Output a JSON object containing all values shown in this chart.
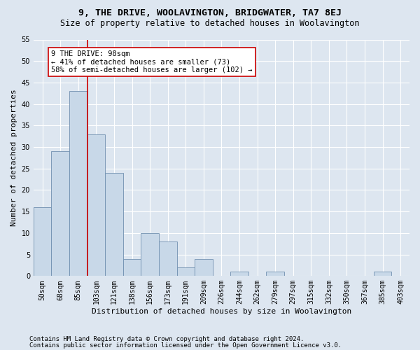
{
  "title": "9, THE DRIVE, WOOLAVINGTON, BRIDGWATER, TA7 8EJ",
  "subtitle": "Size of property relative to detached houses in Woolavington",
  "xlabel": "Distribution of detached houses by size in Woolavington",
  "ylabel": "Number of detached properties",
  "footnote1": "Contains HM Land Registry data © Crown copyright and database right 2024.",
  "footnote2": "Contains public sector information licensed under the Open Government Licence v3.0.",
  "categories": [
    "50sqm",
    "68sqm",
    "85sqm",
    "103sqm",
    "121sqm",
    "138sqm",
    "156sqm",
    "173sqm",
    "191sqm",
    "209sqm",
    "226sqm",
    "244sqm",
    "262sqm",
    "279sqm",
    "297sqm",
    "315sqm",
    "332sqm",
    "350sqm",
    "367sqm",
    "385sqm",
    "403sqm"
  ],
  "values": [
    16,
    29,
    43,
    33,
    24,
    4,
    10,
    8,
    2,
    4,
    0,
    1,
    0,
    1,
    0,
    0,
    0,
    0,
    0,
    1,
    0
  ],
  "bar_color": "#c8d8e8",
  "bar_edge_color": "#7090b0",
  "property_line_x": 2.5,
  "property_line_color": "#cc0000",
  "annotation_text": "9 THE DRIVE: 98sqm\n← 41% of detached houses are smaller (73)\n58% of semi-detached houses are larger (102) →",
  "annotation_box_facecolor": "#ffffff",
  "annotation_box_edgecolor": "#cc0000",
  "ylim": [
    0,
    55
  ],
  "yticks": [
    0,
    5,
    10,
    15,
    20,
    25,
    30,
    35,
    40,
    45,
    50,
    55
  ],
  "background_color": "#dde6f0",
  "grid_color": "#ffffff",
  "title_fontsize": 9.5,
  "subtitle_fontsize": 8.5,
  "xlabel_fontsize": 8,
  "ylabel_fontsize": 8,
  "tick_fontsize": 7,
  "annotation_fontsize": 7.5,
  "footnote_fontsize": 6.5
}
